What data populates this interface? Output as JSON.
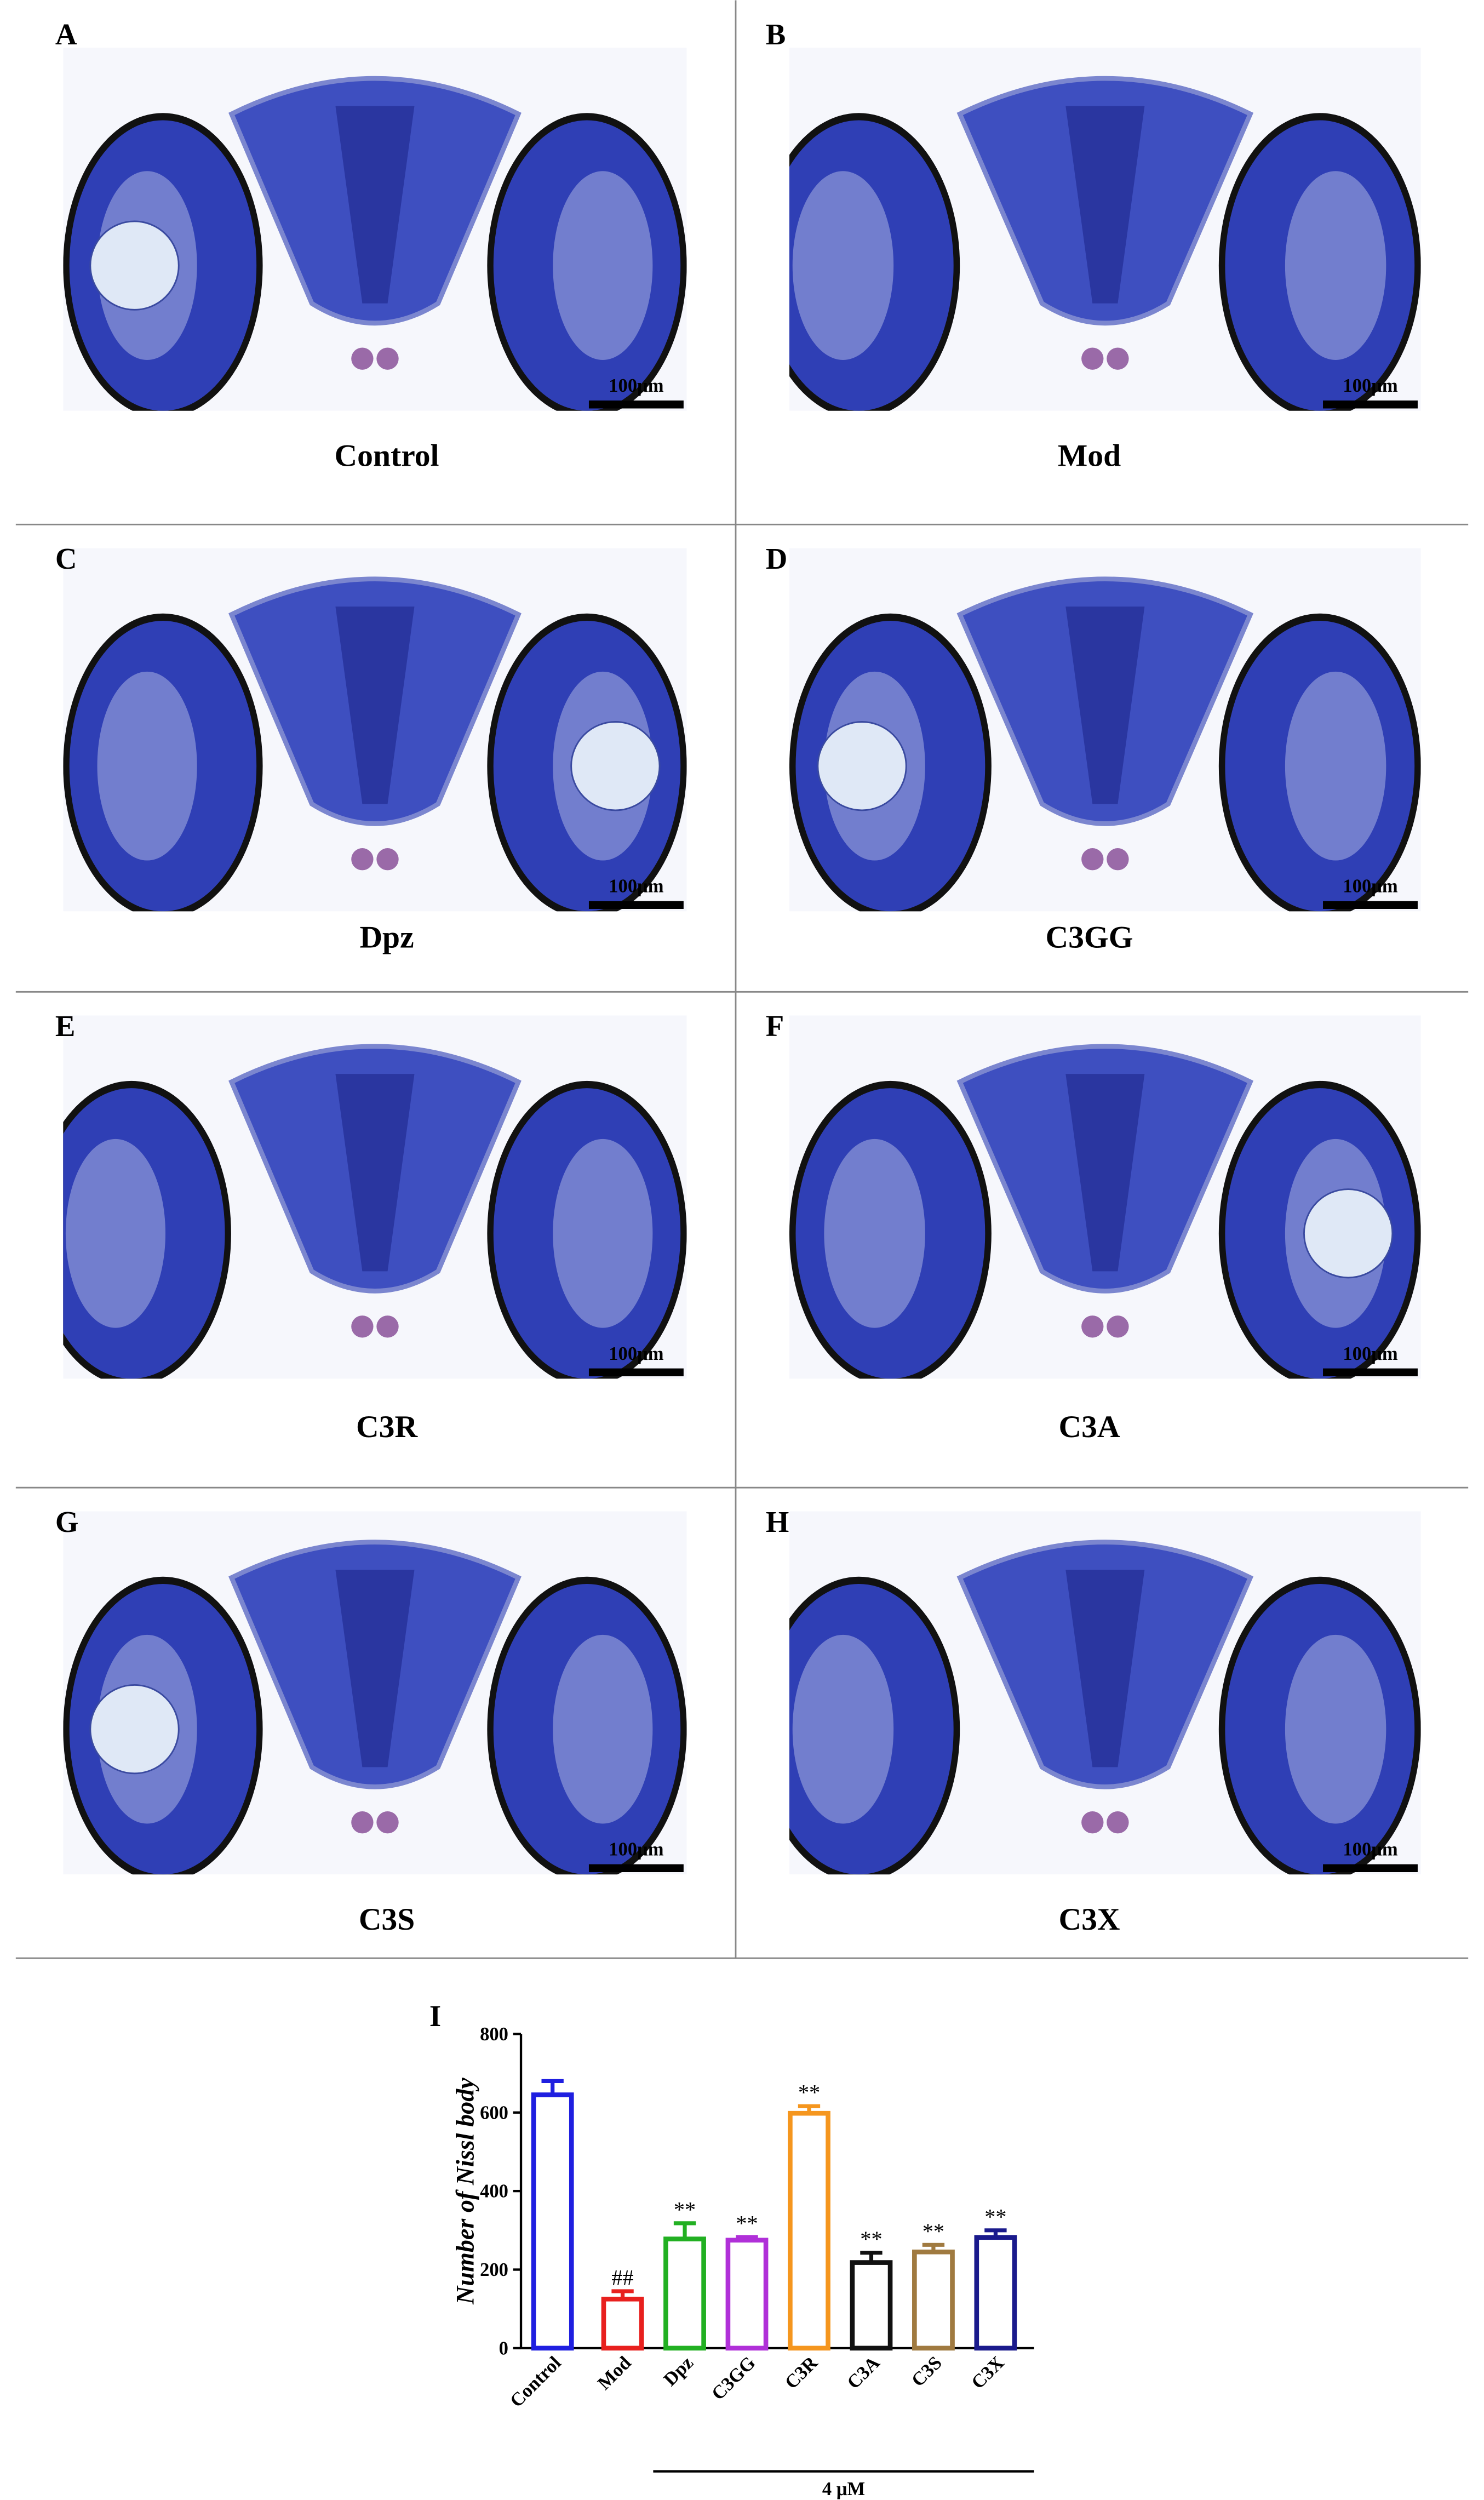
{
  "panels": [
    {
      "letter": "A",
      "label": "Control",
      "scale_bar": "100μm"
    },
    {
      "letter": "B",
      "label": "Mod",
      "scale_bar": "100μm"
    },
    {
      "letter": "C",
      "label": "Dpz",
      "scale_bar": "100μm"
    },
    {
      "letter": "D",
      "label": "C3GG",
      "scale_bar": "100μm"
    },
    {
      "letter": "E",
      "label": "C3R",
      "scale_bar": "100μm"
    },
    {
      "letter": "F",
      "label": "C3A",
      "scale_bar": "100μm"
    },
    {
      "letter": "G",
      "label": "C3S",
      "scale_bar": "100μm"
    },
    {
      "letter": "H",
      "label": "C3X",
      "scale_bar": "100μm"
    }
  ],
  "chart_data": {
    "type": "bar",
    "panel_letter": "I",
    "y_label": "Number of Nissl body",
    "categories": [
      "Control",
      "Mod",
      "Dpz",
      "C3GG",
      "C3R",
      "C3A",
      "C3S",
      "C3X"
    ],
    "values": [
      645,
      125,
      278,
      275,
      598,
      218,
      245,
      282
    ],
    "errors": [
      35,
      20,
      40,
      8,
      18,
      25,
      18,
      18
    ],
    "colors": [
      "#1f1fe0",
      "#e8201e",
      "#22b022",
      "#b030d8",
      "#f5961e",
      "#111111",
      "#a07a40",
      "#1a1a8c"
    ],
    "annotations": [
      null,
      "##",
      "**",
      "**",
      "**",
      "**",
      "**",
      "**"
    ],
    "group_label": "4 μM",
    "ylim": [
      0,
      800
    ],
    "yticks": [
      0,
      200,
      400,
      600,
      800
    ]
  }
}
